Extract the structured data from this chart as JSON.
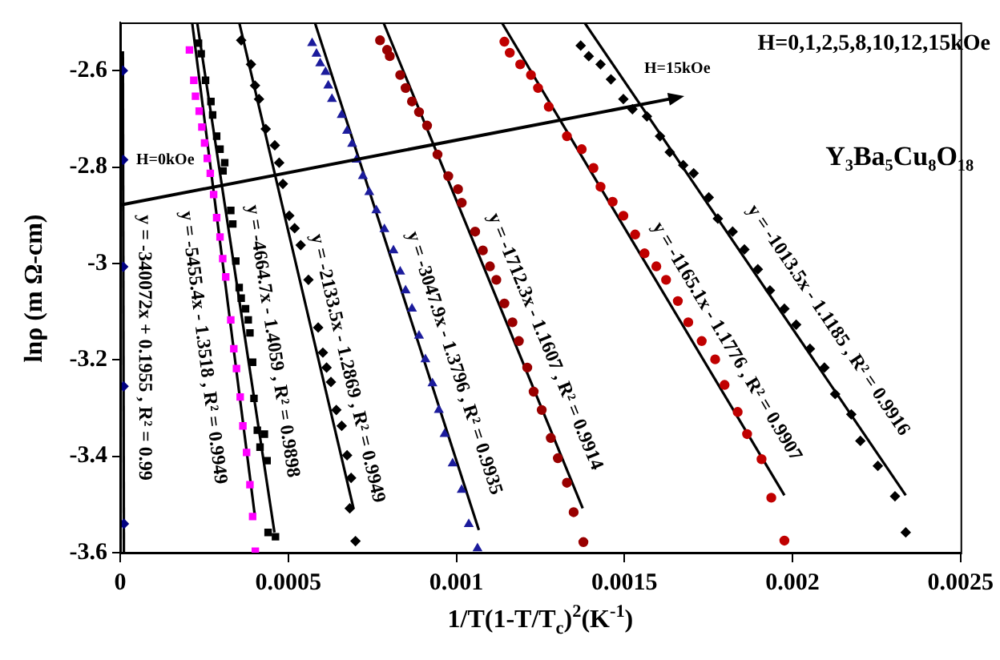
{
  "chart_data": {
    "type": "scatter",
    "xlabel": "1/T(1-T/T$_{c}$)$^{2}$(K$^{-1}$)",
    "ylabel": "lnρ (m Ω-cm)",
    "xlim": [
      0,
      0.0025
    ],
    "xticks": [
      0,
      0.0005,
      0.001,
      0.0015,
      0.002,
      0.0025
    ],
    "ylim": [
      -3.6,
      -2.5
    ],
    "yticks": [
      -3.6,
      -3.4,
      -3.2,
      -3,
      -2.8,
      -2.6
    ],
    "grid": false,
    "legend": false,
    "series": [
      {
        "type": "scatter",
        "marker": "diamond",
        "color": "#000080",
        "x": [
          8e-06,
          9e-06,
          9e-06,
          1e-05,
          1.1e-05
        ],
        "values": [
          -2.6,
          -2.785,
          -3.007,
          -3.255,
          -3.54
        ]
      },
      {
        "type": "scatter",
        "marker": "square",
        "color": "#ff00ff",
        "x": [
          0.000206,
          0.000219,
          0.000224,
          0.000235,
          0.000243,
          0.000251,
          0.000259,
          0.000268,
          0.000278,
          0.000287,
          0.000297,
          0.000305,
          0.000314,
          0.000329,
          0.000338,
          0.000346,
          0.000357,
          0.000365,
          0.000376,
          0.000386,
          0.000394,
          0.000402
        ],
        "values": [
          -2.557,
          -2.62,
          -2.653,
          -2.684,
          -2.717,
          -2.75,
          -2.782,
          -2.813,
          -2.857,
          -2.905,
          -2.945,
          -2.99,
          -3.028,
          -3.117,
          -3.177,
          -3.218,
          -3.277,
          -3.337,
          -3.392,
          -3.459,
          -3.525,
          -3.597
        ]
      },
      {
        "type": "scatter",
        "marker": "square",
        "color": "#000000",
        "x": [
          0.000233,
          0.000241,
          0.000254,
          0.00027,
          0.000275,
          0.000287,
          0.000297,
          0.000311,
          0.000306,
          0.000329,
          0.000335,
          0.000344,
          0.000354,
          0.00036,
          0.000373,
          0.000381,
          0.000386,
          0.000394,
          0.000398,
          0.000408,
          0.000429,
          0.000416,
          0.000437,
          0.00044,
          0.000462
        ],
        "values": [
          -2.543,
          -2.565,
          -2.62,
          -2.664,
          -2.692,
          -2.736,
          -2.763,
          -2.791,
          -2.808,
          -2.89,
          -2.918,
          -2.995,
          -3.05,
          -3.072,
          -3.094,
          -3.117,
          -3.144,
          -3.205,
          -3.28,
          -3.346,
          -3.354,
          -3.381,
          -3.409,
          -3.558,
          -3.567
        ]
      },
      {
        "type": "scatter",
        "marker": "diamond",
        "color": "#000000",
        "x": [
          0.00036,
          0.000389,
          0.000401,
          0.000413,
          0.000433,
          0.00046,
          0.000473,
          0.000484,
          0.000503,
          0.000519,
          0.000537,
          0.00056,
          0.000589,
          0.000603,
          0.000614,
          0.000627,
          0.000643,
          0.000659,
          0.000675,
          0.000687,
          0.000683,
          0.0007
        ],
        "values": [
          -2.537,
          -2.587,
          -2.631,
          -2.659,
          -2.721,
          -2.755,
          -2.791,
          -2.835,
          -2.901,
          -2.927,
          -2.962,
          -3.034,
          -3.133,
          -3.185,
          -3.216,
          -3.246,
          -3.304,
          -3.337,
          -3.398,
          -3.445,
          -3.508,
          -3.576
        ]
      },
      {
        "type": "scatter",
        "marker": "triangle",
        "color": "#1c1c9c",
        "x": [
          0.000571,
          0.000584,
          0.000595,
          0.000611,
          0.000619,
          0.00063,
          0.000659,
          0.000675,
          0.00069,
          0.000703,
          0.000722,
          0.000741,
          0.000762,
          0.000786,
          0.000813,
          0.000833,
          0.000849,
          0.000868,
          0.000889,
          0.000908,
          0.000929,
          0.000948,
          0.000965,
          0.000989,
          0.001016,
          0.001037,
          0.001063
        ],
        "values": [
          -2.543,
          -2.565,
          -2.585,
          -2.603,
          -2.631,
          -2.659,
          -2.692,
          -2.725,
          -2.752,
          -2.785,
          -2.819,
          -2.852,
          -2.89,
          -2.929,
          -2.973,
          -3.017,
          -3.056,
          -3.094,
          -3.15,
          -3.199,
          -3.249,
          -3.304,
          -3.354,
          -3.415,
          -3.47,
          -3.541,
          -3.591
        ]
      },
      {
        "type": "scatter",
        "marker": "circle",
        "color": "#990000",
        "x": [
          0.000773,
          0.000794,
          0.000802,
          0.000833,
          0.000849,
          0.000868,
          0.000889,
          0.000913,
          0.000944,
          0.000976,
          0.001005,
          0.001016,
          0.001056,
          0.001079,
          0.0011,
          0.001119,
          0.001143,
          0.001167,
          0.001186,
          0.001211,
          0.00123,
          0.001254,
          0.001281,
          0.001302,
          0.001329,
          0.001349,
          0.001378
        ],
        "values": [
          -2.537,
          -2.557,
          -2.57,
          -2.609,
          -2.636,
          -2.664,
          -2.686,
          -2.714,
          -2.774,
          -2.819,
          -2.846,
          -2.874,
          -2.934,
          -2.973,
          -3.006,
          -3.034,
          -3.083,
          -3.122,
          -3.161,
          -3.216,
          -3.266,
          -3.304,
          -3.362,
          -3.404,
          -3.455,
          -3.516,
          -3.578
        ]
      },
      {
        "type": "scatter",
        "marker": "circle",
        "color": "#c00000",
        "x": [
          0.001143,
          0.001159,
          0.00119,
          0.001222,
          0.001243,
          0.001275,
          0.001329,
          0.001373,
          0.001408,
          0.001429,
          0.001465,
          0.001497,
          0.001532,
          0.00156,
          0.001595,
          0.001624,
          0.001659,
          0.00169,
          0.00173,
          0.00177,
          0.001798,
          0.001837,
          0.001865,
          0.001908,
          0.001937,
          0.001976
        ],
        "values": [
          -2.54,
          -2.563,
          -2.587,
          -2.609,
          -2.636,
          -2.675,
          -2.736,
          -2.763,
          -2.802,
          -2.841,
          -2.872,
          -2.901,
          -2.94,
          -2.979,
          -3.006,
          -3.034,
          -3.078,
          -3.122,
          -3.161,
          -3.199,
          -3.252,
          -3.308,
          -3.354,
          -3.406,
          -3.486,
          -3.575
        ]
      },
      {
        "type": "scatter",
        "marker": "diamond",
        "color": "#000000",
        "x": [
          0.00137,
          0.001394,
          0.001429,
          0.00146,
          0.001497,
          0.001524,
          0.001567,
          0.001606,
          0.001635,
          0.001675,
          0.001706,
          0.001751,
          0.001778,
          0.001822,
          0.001857,
          0.001897,
          0.001933,
          0.001976,
          0.002011,
          0.002052,
          0.002095,
          0.002127,
          0.002175,
          0.002202,
          0.002254,
          0.002305,
          0.002337
        ],
        "values": [
          -2.548,
          -2.57,
          -2.587,
          -2.618,
          -2.659,
          -2.68,
          -2.695,
          -2.736,
          -2.769,
          -2.796,
          -2.813,
          -2.863,
          -2.907,
          -2.934,
          -2.971,
          -3.012,
          -3.056,
          -3.094,
          -3.127,
          -3.177,
          -3.216,
          -3.271,
          -3.313,
          -3.368,
          -3.42,
          -3.483,
          -3.558
        ]
      },
      {
        "type": "line",
        "color": "#000000",
        "x": [
          8e-06,
          1.1e-05
        ],
        "values": [
          -2.56,
          -3.6
        ]
      },
      {
        "type": "line",
        "color": "#000000",
        "x": [
          0.000214,
          0.0004
        ],
        "values": [
          -2.5,
          -3.52
        ]
      },
      {
        "type": "line",
        "color": "#000000",
        "x": [
          0.000229,
          0.000459
        ],
        "values": [
          -2.5,
          -3.558
        ]
      },
      {
        "type": "line",
        "color": "#000000",
        "x": [
          0.000354,
          0.000694
        ],
        "values": [
          -2.5,
          -3.508
        ]
      },
      {
        "type": "line",
        "color": "#000000",
        "x": [
          0.000579,
          0.001067
        ],
        "values": [
          -2.5,
          -3.553
        ]
      },
      {
        "type": "line",
        "color": "#000000",
        "x": [
          0.000783,
          0.001376
        ],
        "values": [
          -2.5,
          -3.508
        ]
      },
      {
        "type": "line",
        "color": "#000000",
        "x": [
          0.001135,
          0.001976
        ],
        "values": [
          -2.5,
          -3.481
        ]
      },
      {
        "type": "line",
        "color": "#000000",
        "x": [
          0.001381,
          0.002337
        ],
        "values": [
          -2.5,
          -3.481
        ]
      }
    ],
    "annotations": [
      "H=0kOe",
      "H=15kOe",
      "H=0,1,2,5,8,10,12,15kOe",
      "Y₃Ba₅Cu₈O₁₈",
      "y = -340072x + 0.1955 , R² = 0.99",
      "y = -5455.4x - 1.3518 , R² = 0.9949",
      "y = -4664.7x - 1.4059 , R² = 0.9898",
      "y = -2133.5x - 1.2869 , R² = 0.9949",
      "y = -3047.9x - 1.3796 , R² = 0.9935",
      "y = -1712.3x - 1.1607 , R² = 0.9914",
      "y = -1165.1x - 1.1776 , R² = 0.9907",
      "y = -1013.5x - 1.1185 , R² = 0.9916"
    ]
  }
}
